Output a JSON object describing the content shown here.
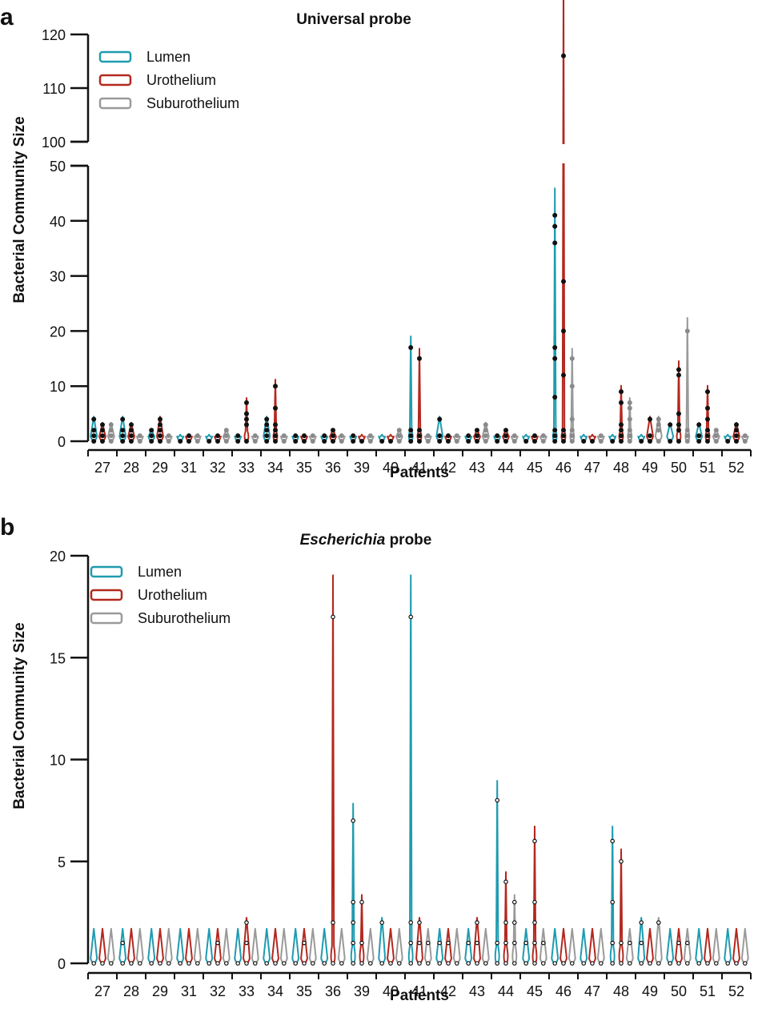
{
  "colors": {
    "lumen": "#1f9bb0",
    "urothelium": "#b3281e",
    "suburothelium": "#9a9a9a",
    "point": "#111111"
  },
  "chart_data": [
    {
      "panel": "a",
      "type": "violin",
      "title": "Universal probe",
      "title_parts": [
        {
          "text": "Universal probe",
          "italic": false
        }
      ],
      "xlabel": "Patients",
      "ylabel": "Bacterial Community Size",
      "yaxis": {
        "broken": true,
        "lower_range": [
          0,
          50
        ],
        "upper_range": [
          100,
          120
        ],
        "lower_ticks": [
          0,
          10,
          20,
          30,
          40,
          50
        ],
        "upper_ticks": [
          100,
          110,
          120
        ]
      },
      "legend": {
        "position": "top-left",
        "entries": [
          "Lumen",
          "Urothelium",
          "Suburothelium"
        ]
      },
      "categories": [
        "27",
        "28",
        "29",
        "31",
        "32",
        "33",
        "34",
        "35",
        "36",
        "39",
        "40",
        "41",
        "42",
        "43",
        "44",
        "45",
        "46",
        "47",
        "48",
        "49",
        "50",
        "51",
        "52"
      ],
      "series": [
        {
          "name": "Lumen",
          "color_key": "lumen",
          "values": [
            [
              0,
              1,
              2,
              4
            ],
            [
              0,
              1,
              2,
              4
            ],
            [
              0,
              1,
              2
            ],
            [
              0
            ],
            [
              0
            ],
            [
              0,
              1
            ],
            [
              0,
              1,
              2,
              3,
              4
            ],
            [
              0,
              1
            ],
            [
              0,
              1
            ],
            [
              0,
              1
            ],
            [
              0
            ],
            [
              0,
              1,
              2,
              17
            ],
            [
              0,
              1,
              4
            ],
            [
              0,
              1
            ],
            [
              0,
              1
            ],
            [
              0
            ],
            [
              0,
              1,
              2,
              8,
              15,
              17,
              36,
              39,
              41
            ],
            [
              0
            ],
            [
              0
            ],
            [
              0
            ],
            [
              0,
              3
            ],
            [
              0,
              1,
              3
            ],
            [
              0
            ]
          ]
        },
        {
          "name": "Urothelium",
          "color_key": "urothelium",
          "values": [
            [
              0,
              1,
              2,
              3
            ],
            [
              0,
              1,
              2,
              3
            ],
            [
              0,
              1,
              2,
              3,
              4
            ],
            [
              0,
              1
            ],
            [
              0,
              1
            ],
            [
              0,
              3,
              4,
              5,
              7
            ],
            [
              0,
              1,
              2,
              3,
              6,
              10
            ],
            [
              0,
              1
            ],
            [
              0,
              1,
              2
            ],
            [
              0
            ],
            [
              0
            ],
            [
              0,
              1,
              2,
              15
            ],
            [
              0,
              1
            ],
            [
              0,
              1,
              2
            ],
            [
              0,
              1,
              2
            ],
            [
              0,
              1
            ],
            [
              0,
              1,
              2,
              12,
              20,
              29,
              116
            ],
            [
              0
            ],
            [
              0,
              1,
              2,
              3,
              7,
              9
            ],
            [
              0,
              1,
              4
            ],
            [
              0,
              2,
              3,
              5,
              12,
              13
            ],
            [
              0,
              1,
              2,
              4,
              6,
              9
            ],
            [
              0,
              1,
              2,
              3
            ]
          ]
        },
        {
          "name": "Suburothelium",
          "color_key": "suburothelium",
          "values": [
            [
              0,
              1,
              2,
              3
            ],
            [
              0,
              1
            ],
            [
              0,
              1
            ],
            [
              0,
              1
            ],
            [
              0,
              1,
              2
            ],
            [
              0,
              1
            ],
            [
              0,
              1
            ],
            [
              0,
              1
            ],
            [
              0,
              1
            ],
            [
              0,
              1
            ],
            [
              0,
              1,
              2
            ],
            [
              0,
              1
            ],
            [
              0,
              1
            ],
            [
              0,
              1,
              2,
              3
            ],
            [
              0,
              1
            ],
            [
              0,
              1
            ],
            [
              0,
              1,
              2,
              4,
              10,
              15
            ],
            [
              0,
              1
            ],
            [
              0,
              1,
              2,
              4,
              6,
              7
            ],
            [
              0,
              2,
              3,
              4
            ],
            [
              0,
              1,
              2,
              20
            ],
            [
              0,
              1,
              2
            ],
            [
              0,
              1
            ]
          ]
        }
      ]
    },
    {
      "panel": "b",
      "type": "violin",
      "title": "Escherichia probe",
      "title_parts": [
        {
          "text": "Escherichia",
          "italic": true
        },
        {
          "text": " probe",
          "italic": false
        }
      ],
      "xlabel": "Patients",
      "ylabel": "Bacterial Community Size",
      "ylim": [
        0,
        20
      ],
      "yticks": [
        0,
        5,
        10,
        15,
        20
      ],
      "legend": {
        "position": "top-left",
        "entries": [
          "Lumen",
          "Urothelium",
          "Suburothelium"
        ]
      },
      "categories": [
        "27",
        "28",
        "29",
        "31",
        "32",
        "33",
        "34",
        "35",
        "36",
        "39",
        "40",
        "41",
        "42",
        "43",
        "44",
        "45",
        "46",
        "47",
        "48",
        "49",
        "50",
        "51",
        "52"
      ],
      "series": [
        {
          "name": "Lumen",
          "color_key": "lumen",
          "values": [
            [
              0
            ],
            [
              0,
              1
            ],
            [
              0
            ],
            [
              0
            ],
            [
              0
            ],
            [
              0
            ],
            [
              0
            ],
            [
              0
            ],
            [
              0
            ],
            [
              0,
              1,
              2,
              3,
              7
            ],
            [
              0,
              2
            ],
            [
              0,
              1,
              2,
              17
            ],
            [
              0,
              1
            ],
            [
              0,
              1
            ],
            [
              0,
              1,
              8
            ],
            [
              0,
              1
            ],
            [
              0
            ],
            [
              0
            ],
            [
              0,
              1,
              3,
              6
            ],
            [
              0,
              1,
              2
            ],
            [
              0
            ],
            [
              0
            ],
            [
              0
            ]
          ]
        },
        {
          "name": "Urothelium",
          "color_key": "urothelium",
          "values": [
            [
              0
            ],
            [
              0
            ],
            [
              0
            ],
            [
              0
            ],
            [
              0,
              1
            ],
            [
              0,
              1,
              2
            ],
            [
              0
            ],
            [
              0,
              1
            ],
            [
              0,
              2,
              17
            ],
            [
              0,
              1,
              3
            ],
            [
              0
            ],
            [
              0,
              1,
              2
            ],
            [
              0,
              1
            ],
            [
              0,
              1,
              2
            ],
            [
              0,
              1,
              2,
              4
            ],
            [
              0,
              1,
              2,
              3,
              6
            ],
            [
              0
            ],
            [
              0
            ],
            [
              0,
              1,
              5
            ],
            [
              0
            ],
            [
              0,
              1
            ],
            [
              0
            ],
            [
              0
            ]
          ]
        },
        {
          "name": "Suburothelium",
          "color_key": "suburothelium",
          "values": [
            [
              0
            ],
            [
              0
            ],
            [
              0
            ],
            [
              0
            ],
            [
              0
            ],
            [
              0
            ],
            [
              0
            ],
            [
              0
            ],
            [
              0
            ],
            [
              0
            ],
            [
              0
            ],
            [
              0,
              1
            ],
            [
              0
            ],
            [
              0
            ],
            [
              0,
              1,
              2,
              3
            ],
            [
              0,
              1
            ],
            [
              0
            ],
            [
              0
            ],
            [
              0,
              1
            ],
            [
              0,
              2
            ],
            [
              0,
              1
            ],
            [
              0
            ],
            [
              0
            ]
          ]
        }
      ]
    }
  ]
}
